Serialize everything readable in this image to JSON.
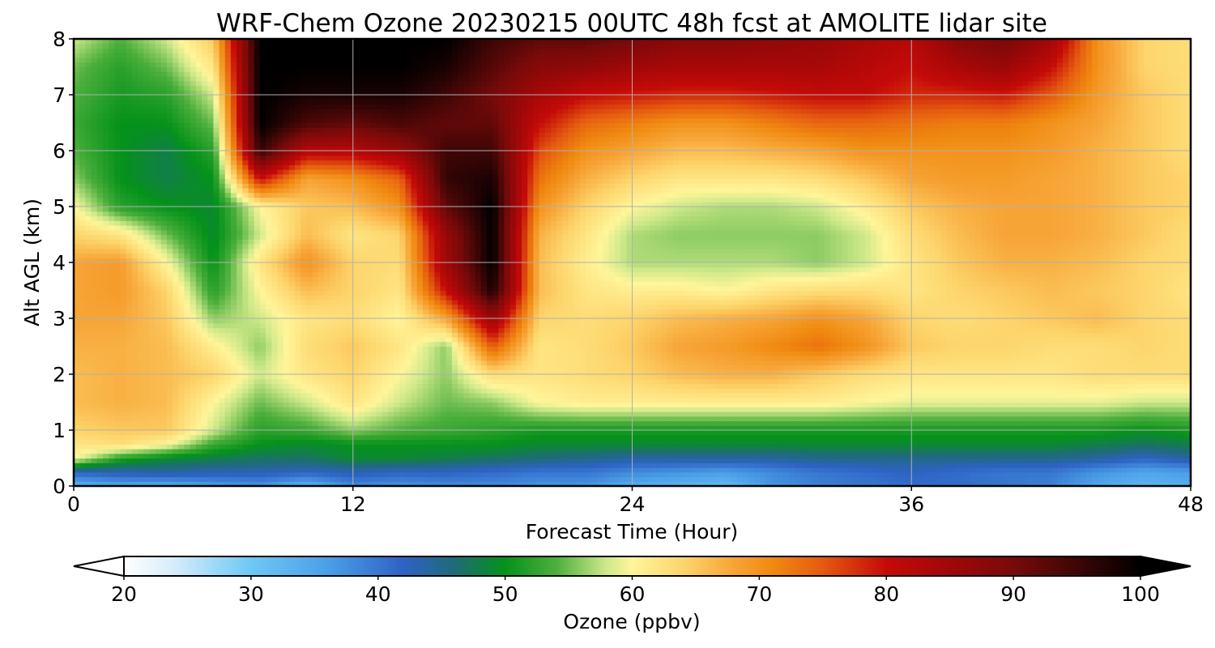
{
  "chart_data": {
    "type": "heatmap",
    "title": "WRF-Chem Ozone  20230215 00UTC 48h fcst at AMOLITE lidar site",
    "xlabel": "Forecast Time (Hour)",
    "ylabel": "Alt AGL (km)",
    "xlim": [
      0,
      48
    ],
    "ylim": [
      0,
      8
    ],
    "xticks": [
      "0",
      "12",
      "24",
      "36",
      "48"
    ],
    "yticks": [
      "0",
      "1",
      "2",
      "3",
      "4",
      "5",
      "6",
      "7",
      "8"
    ],
    "grid": true,
    "x": [
      0,
      2,
      4,
      6,
      8,
      10,
      12,
      14,
      16,
      18,
      20,
      22,
      24,
      26,
      28,
      30,
      32,
      34,
      36,
      38,
      40,
      42,
      44,
      46,
      48
    ],
    "y": [
      0,
      0.25,
      0.5,
      0.75,
      1,
      1.5,
      2,
      2.5,
      3,
      3.5,
      4,
      4.5,
      5,
      5.5,
      6,
      6.5,
      7,
      7.5,
      8
    ],
    "z": [
      [
        33,
        35,
        34,
        36,
        37,
        33,
        38,
        37,
        38,
        38,
        37,
        37,
        34,
        33,
        32,
        37,
        39,
        40,
        41,
        41,
        40,
        39,
        35,
        33,
        34
      ],
      [
        42,
        43,
        44,
        43,
        43,
        42,
        43,
        42,
        42,
        41,
        40,
        40,
        38,
        37,
        36,
        38,
        40,
        41,
        42,
        41,
        40,
        40,
        37,
        35,
        36
      ],
      [
        60,
        52,
        49,
        48,
        47,
        47,
        49,
        49,
        48,
        47,
        46,
        45,
        44,
        44,
        44,
        44,
        45,
        45,
        45,
        45,
        45,
        45,
        44,
        42,
        44
      ],
      [
        62,
        63,
        60,
        53,
        50,
        49,
        50,
        50,
        50,
        50,
        49,
        49,
        49,
        49,
        49,
        49,
        49,
        49,
        49,
        49,
        49,
        49,
        48,
        47,
        48
      ],
      [
        64,
        65,
        65,
        58,
        52,
        53,
        56,
        54,
        53,
        52,
        51,
        51,
        51,
        51,
        51,
        51,
        51,
        51,
        51,
        51,
        51,
        51,
        51,
        50,
        51
      ],
      [
        66,
        67,
        66,
        60,
        55,
        58,
        62,
        58,
        55,
        56,
        60,
        61,
        61,
        61,
        61,
        61,
        61,
        60,
        59,
        59,
        59,
        59,
        59,
        58,
        58
      ],
      [
        66,
        67,
        66,
        64,
        58,
        62,
        64,
        60,
        56,
        63,
        62,
        63,
        64,
        66,
        67,
        67,
        65,
        63,
        62,
        62,
        62,
        62,
        63,
        63,
        63
      ],
      [
        67,
        67,
        66,
        61,
        56,
        63,
        65,
        62,
        56,
        75,
        62,
        63,
        65,
        68,
        69,
        71,
        73,
        70,
        65,
        64,
        64,
        63,
        63,
        64,
        63
      ],
      [
        68,
        68,
        65,
        56,
        58,
        62,
        63,
        60,
        68,
        86,
        64,
        63,
        64,
        66,
        67,
        68,
        70,
        68,
        64,
        63,
        64,
        65,
        66,
        64,
        63
      ],
      [
        68,
        69,
        64,
        52,
        60,
        66,
        64,
        62,
        80,
        98,
        66,
        62,
        61,
        61,
        60,
        62,
        63,
        63,
        62,
        64,
        65,
        66,
        65,
        64,
        62
      ],
      [
        68,
        69,
        60,
        50,
        62,
        70,
        64,
        63,
        85,
        100,
        66,
        61,
        57,
        57,
        57,
        57,
        56,
        58,
        62,
        65,
        67,
        67,
        66,
        64,
        63
      ],
      [
        64,
        62,
        55,
        49,
        58,
        66,
        62,
        64,
        86,
        100,
        67,
        62,
        57,
        56,
        56,
        56,
        56,
        58,
        63,
        66,
        68,
        68,
        67,
        65,
        63
      ],
      [
        60,
        52,
        50,
        49,
        60,
        65,
        66,
        70,
        92,
        100,
        70,
        64,
        60,
        58,
        57,
        57,
        58,
        61,
        65,
        67,
        68,
        68,
        67,
        65,
        64
      ],
      [
        56,
        50,
        48,
        50,
        80,
        68,
        70,
        74,
        96,
        98,
        73,
        67,
        64,
        62,
        62,
        62,
        63,
        65,
        68,
        69,
        69,
        68,
        67,
        65,
        64
      ],
      [
        54,
        50,
        48,
        52,
        96,
        82,
        82,
        86,
        95,
        95,
        76,
        70,
        68,
        66,
        66,
        67,
        68,
        70,
        70,
        70,
        70,
        69,
        67,
        65,
        63
      ],
      [
        53,
        50,
        50,
        55,
        100,
        94,
        92,
        94,
        92,
        92,
        80,
        74,
        72,
        70,
        70,
        72,
        74,
        74,
        73,
        72,
        72,
        70,
        68,
        65,
        63
      ],
      [
        54,
        51,
        52,
        58,
        100,
        98,
        98,
        98,
        95,
        90,
        84,
        80,
        79,
        78,
        78,
        79,
        80,
        80,
        78,
        78,
        79,
        75,
        69,
        65,
        63
      ],
      [
        55,
        52,
        55,
        62,
        100,
        100,
        100,
        100,
        98,
        93,
        88,
        87,
        85,
        84,
        84,
        84,
        84,
        82,
        80,
        84,
        86,
        80,
        70,
        64,
        63
      ],
      [
        58,
        54,
        58,
        65,
        100,
        100,
        100,
        100,
        100,
        95,
        92,
        92,
        90,
        88,
        88,
        87,
        86,
        84,
        82,
        88,
        90,
        85,
        70,
        64,
        63
      ]
    ],
    "colorbar": {
      "label": "Ozone  (ppbv)",
      "min": 20,
      "max": 100,
      "ticks": [
        "20",
        "30",
        "40",
        "50",
        "60",
        "70",
        "80",
        "90",
        "100"
      ],
      "extend": "both",
      "stops": [
        {
          "v": 20,
          "c": "#ffffff"
        },
        {
          "v": 24,
          "c": "#d5ecfa"
        },
        {
          "v": 30,
          "c": "#6dc8f5"
        },
        {
          "v": 36,
          "c": "#4aa0e8"
        },
        {
          "v": 42,
          "c": "#2e62c4"
        },
        {
          "v": 46,
          "c": "#1e6b78"
        },
        {
          "v": 50,
          "c": "#05921a"
        },
        {
          "v": 54,
          "c": "#4caf3c"
        },
        {
          "v": 58,
          "c": "#cfe98a"
        },
        {
          "v": 60,
          "c": "#fff59a"
        },
        {
          "v": 64,
          "c": "#fdd56c"
        },
        {
          "v": 68,
          "c": "#f7a436"
        },
        {
          "v": 71,
          "c": "#f08a10"
        },
        {
          "v": 75,
          "c": "#e55a10"
        },
        {
          "v": 80,
          "c": "#c40a08"
        },
        {
          "v": 85,
          "c": "#a00808"
        },
        {
          "v": 90,
          "c": "#780a0a"
        },
        {
          "v": 95,
          "c": "#3e0606"
        },
        {
          "v": 100,
          "c": "#000000"
        }
      ]
    }
  }
}
